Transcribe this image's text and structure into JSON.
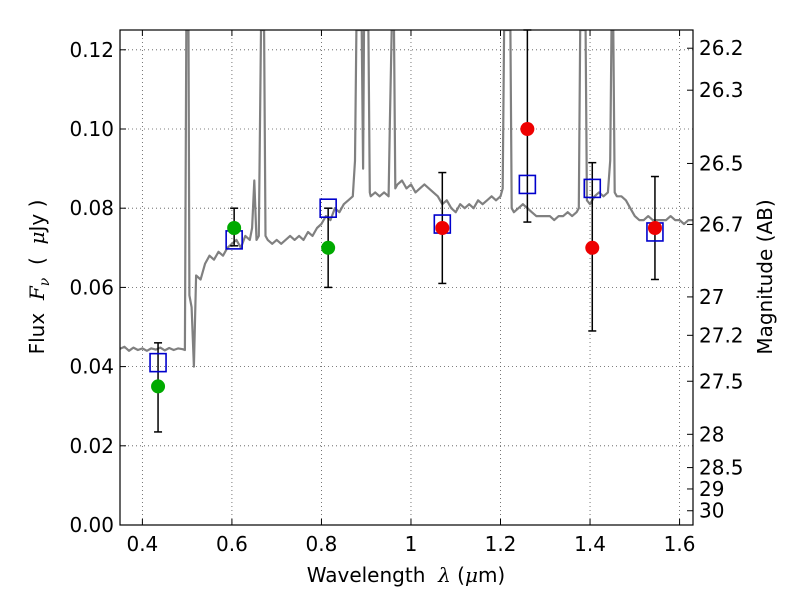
{
  "chart_data": {
    "type": "scatter",
    "title": "",
    "xlabel": "Wavelength  λ (μm)",
    "ylabel": "Flux  Fν  ( μJy )",
    "ylabel_parts": {
      "prefix": "Flux  ",
      "symbol": "F",
      "subscript": "ν",
      "unit_open": "  (  ",
      "unit_symbol": "μ",
      "unit_rest": "Jy )"
    },
    "xlabel_parts": {
      "prefix": "Wavelength  ",
      "symbol": "λ",
      "unit_open": " (",
      "unit_symbol": "μ",
      "unit_rest": "m)"
    },
    "y2label": "Magnitude (AB)",
    "xlim": [
      0.35,
      1.63
    ],
    "ylim": [
      0.0,
      0.125
    ],
    "grid": true,
    "x_ticks": [
      {
        "value": 0.4,
        "label": "0.4"
      },
      {
        "value": 0.6,
        "label": "0.6"
      },
      {
        "value": 0.8,
        "label": "0.8"
      },
      {
        "value": 1.0,
        "label": "1"
      },
      {
        "value": 1.2,
        "label": "1.2"
      },
      {
        "value": 1.4,
        "label": "1.4"
      },
      {
        "value": 1.6,
        "label": "1.6"
      }
    ],
    "y_ticks": [
      {
        "value": 0.0,
        "label": "0.00"
      },
      {
        "value": 0.02,
        "label": "0.02"
      },
      {
        "value": 0.04,
        "label": "0.04"
      },
      {
        "value": 0.06,
        "label": "0.06"
      },
      {
        "value": 0.08,
        "label": "0.08"
      },
      {
        "value": 0.1,
        "label": "0.10"
      },
      {
        "value": 0.12,
        "label": "0.12"
      }
    ],
    "y2_ticks": [
      {
        "label": "26.2",
        "flux": 0.1204
      },
      {
        "label": "26.3",
        "flux": 0.1098
      },
      {
        "label": "26.5",
        "flux": 0.0913
      },
      {
        "label": "26.7",
        "flux": 0.0759
      },
      {
        "label": "27",
        "flux": 0.0576
      },
      {
        "label": "27.2",
        "flux": 0.0479
      },
      {
        "label": "27.5",
        "flux": 0.0363
      },
      {
        "label": "28",
        "flux": 0.0229
      },
      {
        "label": "28.5",
        "flux": 0.0145
      },
      {
        "label": "29",
        "flux": 0.0091
      },
      {
        "label": "30",
        "flux": 0.0036
      }
    ],
    "colors": {
      "spectrum": "#808080",
      "model": "#0000cc",
      "optical": "#00aa00",
      "infrared": "#ee0000",
      "errorbar": "#000000",
      "grid": "#555555"
    },
    "spectrum": [
      [
        0.35,
        0.0445
      ],
      [
        0.36,
        0.045
      ],
      [
        0.37,
        0.044
      ],
      [
        0.38,
        0.0448
      ],
      [
        0.39,
        0.0442
      ],
      [
        0.4,
        0.0446
      ],
      [
        0.41,
        0.044
      ],
      [
        0.42,
        0.0446
      ],
      [
        0.43,
        0.0443
      ],
      [
        0.44,
        0.0448
      ],
      [
        0.45,
        0.0441
      ],
      [
        0.46,
        0.0447
      ],
      [
        0.47,
        0.0442
      ],
      [
        0.48,
        0.0446
      ],
      [
        0.49,
        0.0444
      ],
      [
        0.495,
        0.0442
      ],
      [
        0.498,
        0.125
      ],
      [
        0.503,
        0.125
      ],
      [
        0.505,
        0.058
      ],
      [
        0.51,
        0.055
      ],
      [
        0.515,
        0.04
      ],
      [
        0.52,
        0.063
      ],
      [
        0.53,
        0.062
      ],
      [
        0.54,
        0.066
      ],
      [
        0.55,
        0.068
      ],
      [
        0.56,
        0.067
      ],
      [
        0.57,
        0.069
      ],
      [
        0.58,
        0.068
      ],
      [
        0.59,
        0.07
      ],
      [
        0.6,
        0.071
      ],
      [
        0.61,
        0.072
      ],
      [
        0.62,
        0.07
      ],
      [
        0.63,
        0.073
      ],
      [
        0.64,
        0.072
      ],
      [
        0.645,
        0.075
      ],
      [
        0.65,
        0.087
      ],
      [
        0.655,
        0.072
      ],
      [
        0.66,
        0.073
      ],
      [
        0.665,
        0.125
      ],
      [
        0.672,
        0.125
      ],
      [
        0.675,
        0.073
      ],
      [
        0.68,
        0.072
      ],
      [
        0.69,
        0.071
      ],
      [
        0.7,
        0.072
      ],
      [
        0.71,
        0.071
      ],
      [
        0.72,
        0.072
      ],
      [
        0.73,
        0.073
      ],
      [
        0.74,
        0.072
      ],
      [
        0.75,
        0.073
      ],
      [
        0.76,
        0.072
      ],
      [
        0.77,
        0.074
      ],
      [
        0.78,
        0.073
      ],
      [
        0.79,
        0.075
      ],
      [
        0.8,
        0.076
      ],
      [
        0.81,
        0.078
      ],
      [
        0.82,
        0.077
      ],
      [
        0.83,
        0.08
      ],
      [
        0.84,
        0.079
      ],
      [
        0.85,
        0.081
      ],
      [
        0.86,
        0.082
      ],
      [
        0.87,
        0.083
      ],
      [
        0.875,
        0.092
      ],
      [
        0.878,
        0.125
      ],
      [
        0.89,
        0.125
      ],
      [
        0.893,
        0.09
      ],
      [
        0.895,
        0.125
      ],
      [
        0.905,
        0.125
      ],
      [
        0.908,
        0.084
      ],
      [
        0.91,
        0.083
      ],
      [
        0.92,
        0.084
      ],
      [
        0.93,
        0.083
      ],
      [
        0.94,
        0.084
      ],
      [
        0.95,
        0.083
      ],
      [
        0.953,
        0.102
      ],
      [
        0.957,
        0.125
      ],
      [
        0.962,
        0.125
      ],
      [
        0.965,
        0.085
      ],
      [
        0.97,
        0.086
      ],
      [
        0.98,
        0.087
      ],
      [
        0.99,
        0.085
      ],
      [
        1.0,
        0.086
      ],
      [
        1.01,
        0.084
      ],
      [
        1.02,
        0.085
      ],
      [
        1.03,
        0.086
      ],
      [
        1.04,
        0.085
      ],
      [
        1.05,
        0.084
      ],
      [
        1.06,
        0.083
      ],
      [
        1.07,
        0.081
      ],
      [
        1.08,
        0.082
      ],
      [
        1.09,
        0.08
      ],
      [
        1.1,
        0.079
      ],
      [
        1.11,
        0.081
      ],
      [
        1.12,
        0.08
      ],
      [
        1.13,
        0.081
      ],
      [
        1.14,
        0.08
      ],
      [
        1.15,
        0.082
      ],
      [
        1.16,
        0.081
      ],
      [
        1.17,
        0.082
      ],
      [
        1.18,
        0.083
      ],
      [
        1.19,
        0.082
      ],
      [
        1.2,
        0.083
      ],
      [
        1.205,
        0.085
      ],
      [
        1.208,
        0.125
      ],
      [
        1.222,
        0.125
      ],
      [
        1.225,
        0.08
      ],
      [
        1.23,
        0.079
      ],
      [
        1.24,
        0.08
      ],
      [
        1.25,
        0.081
      ],
      [
        1.26,
        0.08
      ],
      [
        1.27,
        0.079
      ],
      [
        1.28,
        0.078
      ],
      [
        1.29,
        0.078
      ],
      [
        1.3,
        0.078
      ],
      [
        1.31,
        0.078
      ],
      [
        1.32,
        0.077
      ],
      [
        1.33,
        0.078
      ],
      [
        1.34,
        0.078
      ],
      [
        1.35,
        0.079
      ],
      [
        1.36,
        0.078
      ],
      [
        1.37,
        0.079
      ],
      [
        1.375,
        0.08
      ],
      [
        1.378,
        0.125
      ],
      [
        1.39,
        0.125
      ],
      [
        1.393,
        0.082
      ],
      [
        1.4,
        0.081
      ],
      [
        1.41,
        0.083
      ],
      [
        1.42,
        0.084
      ],
      [
        1.43,
        0.083
      ],
      [
        1.44,
        0.084
      ],
      [
        1.445,
        0.092
      ],
      [
        1.448,
        0.125
      ],
      [
        1.452,
        0.125
      ],
      [
        1.455,
        0.084
      ],
      [
        1.46,
        0.083
      ],
      [
        1.47,
        0.083
      ],
      [
        1.48,
        0.082
      ],
      [
        1.49,
        0.08
      ],
      [
        1.5,
        0.078
      ],
      [
        1.51,
        0.077
      ],
      [
        1.52,
        0.077
      ],
      [
        1.53,
        0.078
      ],
      [
        1.54,
        0.077
      ],
      [
        1.55,
        0.077
      ],
      [
        1.56,
        0.077
      ],
      [
        1.57,
        0.077
      ],
      [
        1.58,
        0.078
      ],
      [
        1.59,
        0.077
      ],
      [
        1.6,
        0.077
      ],
      [
        1.61,
        0.076
      ],
      [
        1.62,
        0.077
      ],
      [
        1.63,
        0.077
      ]
    ],
    "model_points": [
      {
        "x": 0.435,
        "y": 0.041
      },
      {
        "x": 0.605,
        "y": 0.072
      },
      {
        "x": 0.815,
        "y": 0.08
      },
      {
        "x": 1.07,
        "y": 0.076
      },
      {
        "x": 1.26,
        "y": 0.086
      },
      {
        "x": 1.405,
        "y": 0.085
      },
      {
        "x": 1.545,
        "y": 0.074
      }
    ],
    "observed_optical": [
      {
        "x": 0.435,
        "y": 0.035,
        "err_low": 0.0235,
        "err_high": 0.046
      },
      {
        "x": 0.605,
        "y": 0.075,
        "err_low": 0.0705,
        "err_high": 0.08
      },
      {
        "x": 0.815,
        "y": 0.07,
        "err_low": 0.06,
        "err_high": 0.08
      }
    ],
    "observed_infrared": [
      {
        "x": 1.07,
        "y": 0.075,
        "err_low": 0.061,
        "err_high": 0.089
      },
      {
        "x": 1.26,
        "y": 0.1,
        "err_low": 0.0765,
        "err_high": 0.125
      },
      {
        "x": 1.405,
        "y": 0.07,
        "err_low": 0.049,
        "err_high": 0.0915
      },
      {
        "x": 1.545,
        "y": 0.075,
        "err_low": 0.062,
        "err_high": 0.088
      }
    ]
  }
}
